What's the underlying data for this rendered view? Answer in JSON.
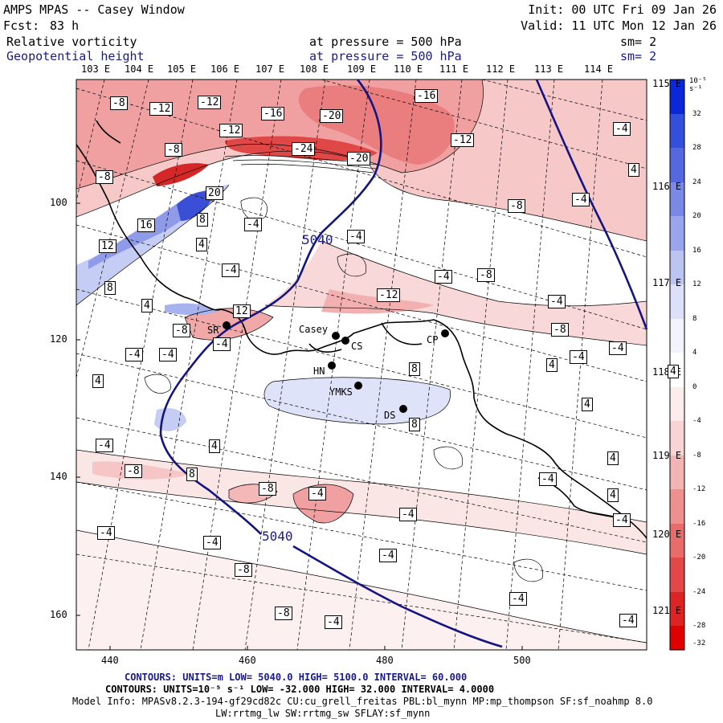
{
  "header": {
    "title": "AMPS MPAS -- Casey Window",
    "forecast_label": "Fcst:",
    "forecast_value": "83 h",
    "init": "Init: 00 UTC Fri 09 Jan 26",
    "valid": "Valid: 11 UTC Mon 12 Jan 26",
    "field1": {
      "name": "Relative vorticity",
      "level": "at pressure =  500 hPa",
      "smooth": "sm= 2"
    },
    "field2": {
      "name": "Geopotential height",
      "level": "at pressure =  500 hPa",
      "smooth": "sm= 2"
    }
  },
  "axes": {
    "top_longitudes": [
      "103 E",
      "104 E",
      "105 E",
      "106 E",
      "107 E",
      "108 E",
      "109 E",
      "110 E",
      "111 E",
      "112 E",
      "113 E",
      "114 E"
    ],
    "right_longitudes": [
      "115 E",
      "116 E",
      "117 E",
      "118 E",
      "119 E",
      "120 E",
      "121 E"
    ],
    "left_ticks": [
      "100",
      "120",
      "140",
      "160"
    ],
    "bottom_ticks": [
      "440",
      "460",
      "480",
      "500"
    ]
  },
  "colorbar": {
    "unit": "10⁻⁵ s⁻¹",
    "levels": [
      "32",
      "28",
      "24",
      "20",
      "16",
      "12",
      "8",
      "4",
      "0",
      "-4",
      "-8",
      "-12",
      "-16",
      "-20",
      "-24",
      "-28",
      "-32"
    ]
  },
  "stations": [
    {
      "code": "SR"
    },
    {
      "code": "Casey"
    },
    {
      "code": "CS"
    },
    {
      "code": "CP"
    },
    {
      "code": "HN"
    },
    {
      "code": "YMKS"
    },
    {
      "code": "DS"
    }
  ],
  "height_contours": [
    "5040",
    "5040"
  ],
  "contour_labels": [
    "-8",
    "-12",
    "-12",
    "-16",
    "-20",
    "-16",
    "-12",
    "-8",
    "-24",
    "-20",
    "-12",
    "-8",
    "20",
    "-8",
    "16",
    "8",
    "-4",
    "-4",
    "-4",
    "12",
    "4",
    "-4",
    "-4",
    "-8",
    "-4",
    "8",
    "-12",
    "4",
    "4",
    "12",
    "-8",
    "-4",
    "-8",
    "-4",
    "-4",
    "-4",
    "8",
    "-4",
    "4",
    "8",
    "-4",
    "4",
    "4",
    "-4",
    "-8",
    "4",
    "8",
    "-4",
    "-8",
    "-4",
    "4",
    "4",
    "-4",
    "-4",
    "-8",
    "-4",
    "-8",
    "-4",
    "-4",
    "-4",
    "-4",
    "4",
    "4",
    "-4"
  ],
  "footer": {
    "line1": "CONTOURS:  UNITS=m  LOW=  5040.0       HIGH=  5100.0      INTERVAL=  60.000",
    "line2": "CONTOURS:  UNITS=10⁻⁵ s⁻¹  LOW= -32.000       HIGH=  32.000     INTERVAL=  4.0000",
    "line3": "Model Info: MPASv8.2.3-194-gf29cd82c CU:cu_grell_freitas PBL:bl_mynn MP:mp_thompson SF:sf_noahmp 8.0",
    "line4": "LW:rrtmg_lw SW:rrtmg_sw SFLAY:sf_mynn"
  }
}
